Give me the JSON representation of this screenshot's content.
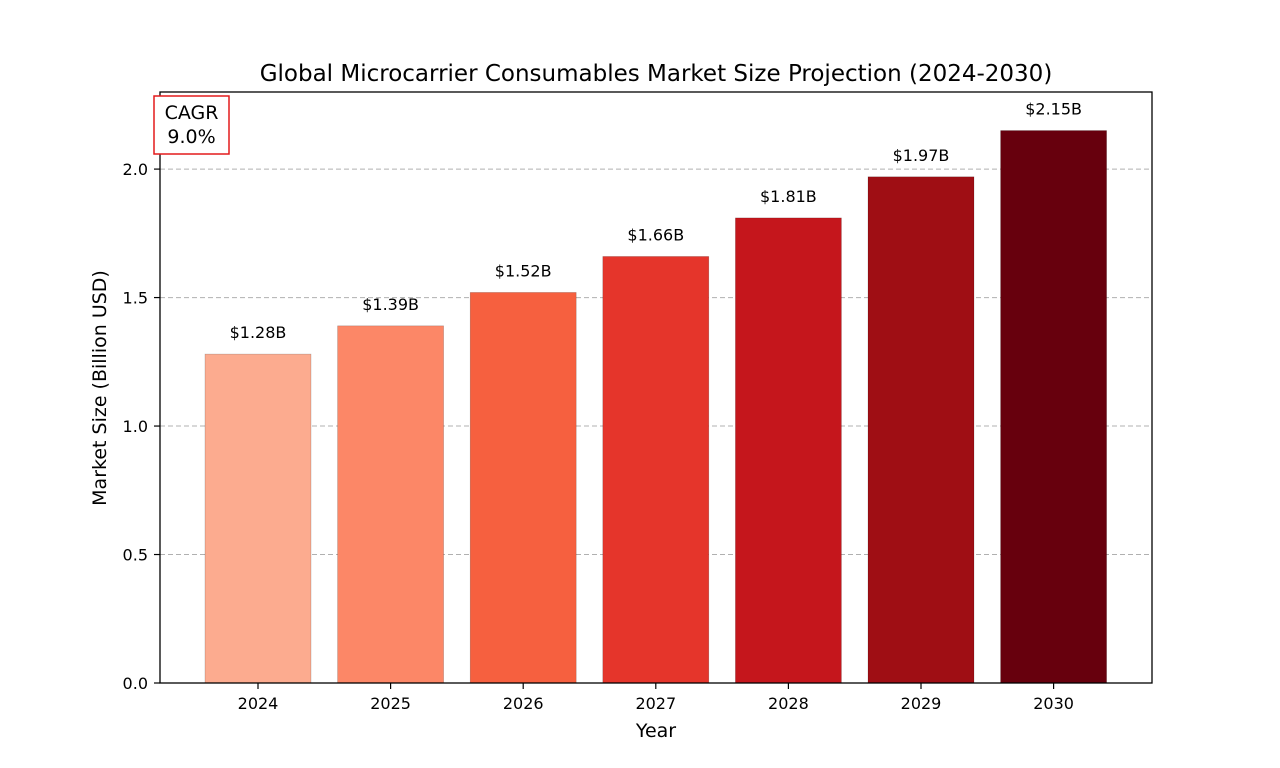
{
  "chart_data": {
    "type": "bar",
    "title": "Global Microcarrier Consumables Market Size Projection (2024-2030)",
    "xlabel": "Year",
    "ylabel": "Market Size (Billion USD)",
    "categories": [
      "2024",
      "2025",
      "2026",
      "2027",
      "2028",
      "2029",
      "2030"
    ],
    "values": [
      1.28,
      1.39,
      1.52,
      1.66,
      1.81,
      1.97,
      2.15
    ],
    "data_labels": [
      "$1.28B",
      "$1.39B",
      "$1.52B",
      "$1.66B",
      "$1.81B",
      "$1.97B",
      "$2.15B"
    ],
    "bar_colors": [
      "#fcab8f",
      "#fc8767",
      "#f6603f",
      "#e5352b",
      "#c5161c",
      "#9f0e14",
      "#67000d"
    ],
    "ylim": [
      0,
      2.3
    ],
    "yticks": [
      0.0,
      0.5,
      1.0,
      1.5,
      2.0
    ],
    "ytick_labels": [
      "0.0",
      "0.5",
      "1.0",
      "1.5",
      "2.0"
    ],
    "grid": "y-dashed",
    "annotation": {
      "label": "CAGR",
      "value": "9.0%",
      "border_color": "#e31a1c"
    }
  }
}
